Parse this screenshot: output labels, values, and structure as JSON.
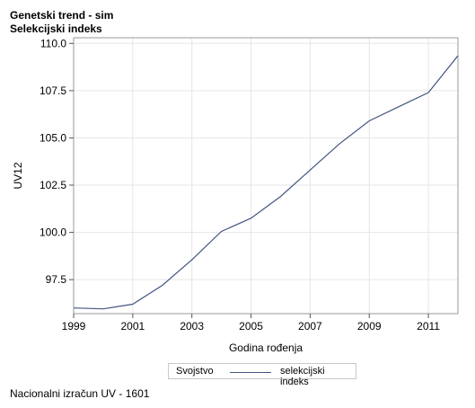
{
  "header": {
    "title": "Genetski trend - sim",
    "subtitle": "Selekcijski indeks"
  },
  "footer": {
    "note": "Nacionalni izračun UV - 1601"
  },
  "legend": {
    "title": "Svojstvo",
    "placement": "bottom-center"
  },
  "colors": {
    "line": "#445580",
    "grid": "#e6e6e6",
    "frame": "#9a9a9a"
  },
  "chart_data": {
    "type": "line",
    "xlabel": "Godina rođenja",
    "ylabel": "UV12",
    "xlim": [
      1999,
      2012
    ],
    "ylim": [
      95.7,
      110.3
    ],
    "x_ticks": [
      1999,
      2001,
      2003,
      2005,
      2007,
      2009,
      2011
    ],
    "y_ticks": [
      97.5,
      100.0,
      102.5,
      105.0,
      107.5,
      110.0
    ],
    "y_tick_labels": [
      "97.5",
      "100.0",
      "102.5",
      "105.0",
      "107.5",
      "110.0"
    ],
    "grid": true,
    "x": [
      1999,
      2000,
      2001,
      2002,
      2003,
      2004,
      2005,
      2006,
      2007,
      2008,
      2009,
      2010,
      2011,
      2012
    ],
    "series": [
      {
        "name": "selekcijski indeks",
        "values": [
          96.0,
          95.95,
          96.2,
          97.2,
          98.55,
          100.05,
          100.75,
          101.9,
          103.3,
          104.7,
          105.9,
          106.65,
          107.4,
          109.35
        ]
      }
    ]
  }
}
